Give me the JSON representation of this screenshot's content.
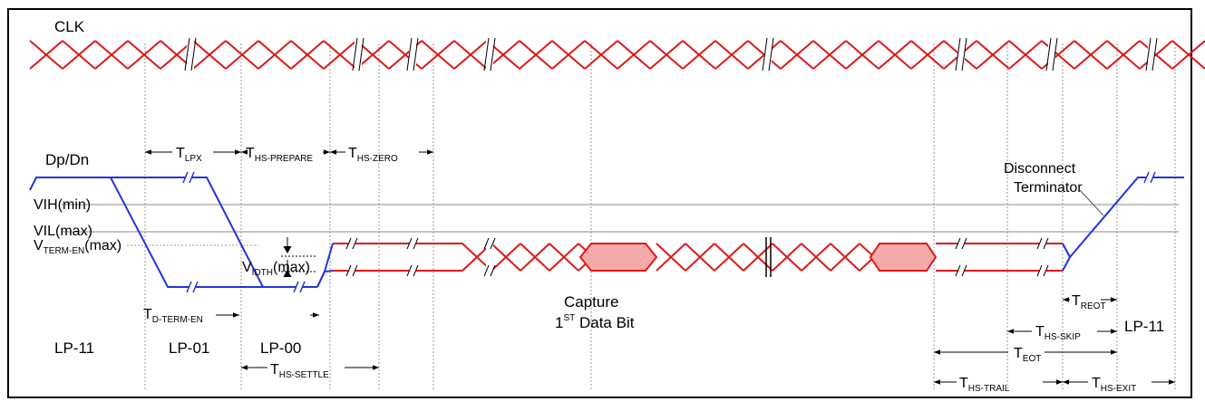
{
  "title": "CLK",
  "signal": "Dp/Dn",
  "levels": {
    "vih": "VIH(min)",
    "vil": "VIL(max)",
    "vterm": {
      "main": "V",
      "sub": "TERM-EN",
      "tail": "(max)"
    }
  },
  "vidth": {
    "main": "V",
    "sub": "IDTH",
    "tail": "(max)"
  },
  "timings": {
    "tlpx": {
      "main": "T",
      "sub": "LPX"
    },
    "ths_prepare": {
      "main": "T",
      "sub": "HS-PREPARE"
    },
    "ths_zero": {
      "main": "T",
      "sub": "HS-ZERO"
    },
    "td_term_en": {
      "main": "T",
      "sub": "D-TERM-EN"
    },
    "ths_settle": {
      "main": "T",
      "sub": "HS-SETTLE"
    },
    "treot": {
      "main": "T",
      "sub": "REOT"
    },
    "ths_skip": {
      "main": "T",
      "sub": "HS-SKIP"
    },
    "teot": {
      "main": "T",
      "sub": "EOT"
    },
    "ths_trail": {
      "main": "T",
      "sub": "HS-TRAIL"
    },
    "ths_exit": {
      "main": "T",
      "sub": "HS-EXIT"
    }
  },
  "states": {
    "lp11_start": "LP-11",
    "lp01": "LP-01",
    "lp00": "LP-00",
    "lp11_end": "LP-11"
  },
  "capture": {
    "line1": "Capture",
    "line2_pre": "1",
    "line2_sup": "ST",
    "line2_post": " Data Bit"
  },
  "disconnect": {
    "line1": "Disconnect",
    "line2": "Terminator"
  },
  "colors": {
    "signal_blue": "#2233dd",
    "hs_red": "#e01818",
    "fill_pink": "#f4aaaa"
  }
}
